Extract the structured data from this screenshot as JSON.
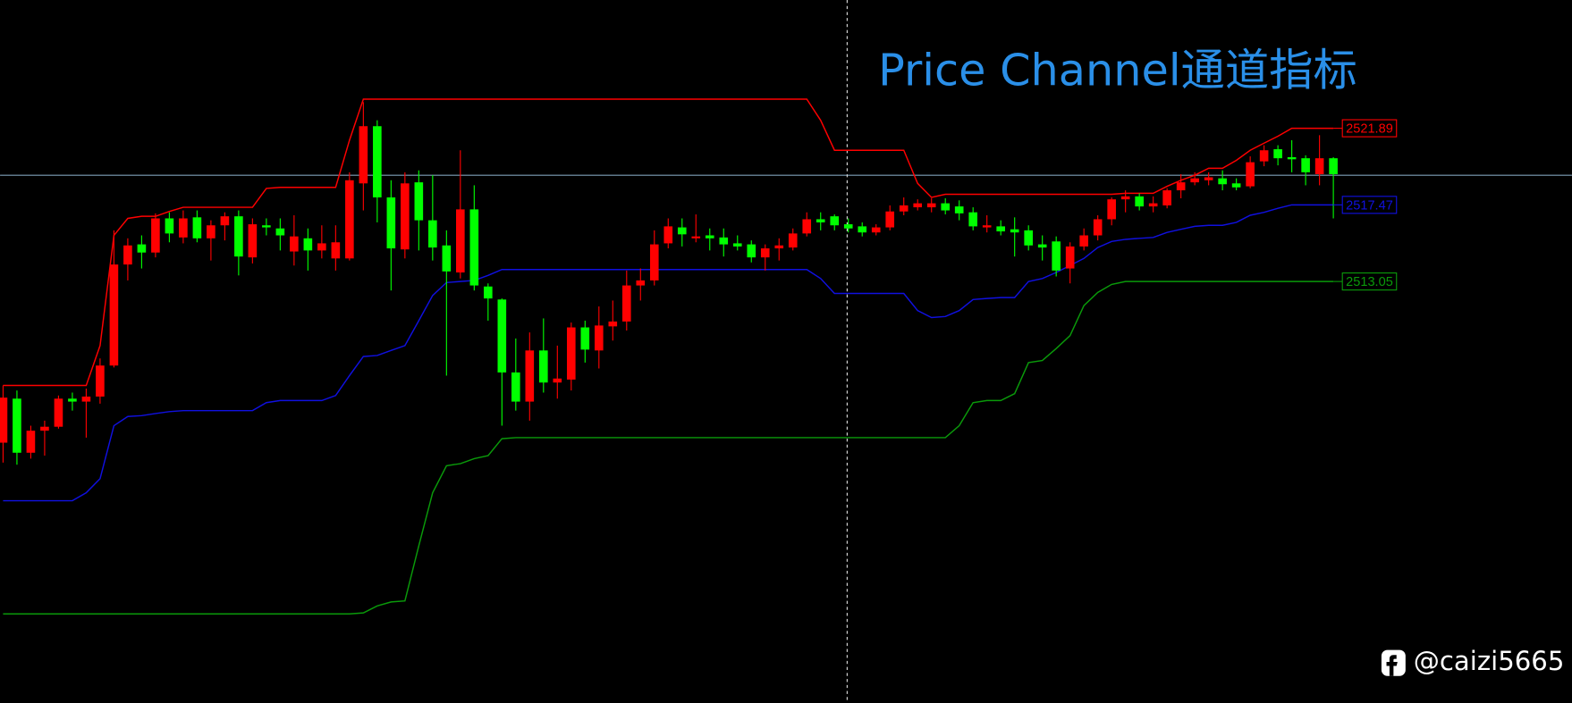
{
  "chart_data": {
    "type": "candlestick",
    "title": "Price Channel通道指标",
    "watermark": "@caizi5665",
    "ylim": [
      2488.73,
      2529.29
    ],
    "up_color": "#ff0000",
    "down_color": "#00ff00",
    "open": [
      2503.75,
      2506.29,
      2503.17,
      2504.44,
      2504.67,
      2506.29,
      2506.12,
      2506.41,
      2508.2,
      2514.03,
      2515.19,
      2514.72,
      2516.69,
      2515.59,
      2516.75,
      2515.54,
      2516.29,
      2516.81,
      2514.44,
      2516.29,
      2516.11,
      2514.78,
      2515.54,
      2514.84,
      2514.38,
      2514.38,
      2518.71,
      2522.01,
      2517.9,
      2514.9,
      2518.77,
      2516.58,
      2515.13,
      2513.57,
      2517.21,
      2512.76,
      2512.01,
      2507.8,
      2506.12,
      2509.07,
      2507.22,
      2507.39,
      2510.4,
      2509.07,
      2510.46,
      2510.74,
      2512.82,
      2513.11,
      2515.25,
      2516.17,
      2515.54,
      2515.71,
      2515.59,
      2515.25,
      2515.19,
      2514.44,
      2514.96,
      2515.01,
      2515.82,
      2516.64,
      2516.81,
      2516.35,
      2516.23,
      2515.88,
      2516.17,
      2517.09,
      2517.33,
      2517.33,
      2517.56,
      2517.38,
      2517.04,
      2516.17,
      2516.23,
      2516.06,
      2516.0,
      2515.19,
      2515.36,
      2513.8,
      2515.07,
      2515.71,
      2516.64,
      2517.79,
      2517.96,
      2517.38,
      2517.44,
      2518.31,
      2518.77,
      2518.89,
      2519.0,
      2518.71,
      2518.54,
      2519.98,
      2520.68,
      2520.22,
      2520.16,
      2519.24,
      2520.16
    ],
    "high": [
      2507.05,
      2506.76,
      2504.73,
      2505.02,
      2506.47,
      2506.64,
      2506.87,
      2508.61,
      2516.0,
      2515.54,
      2515.71,
      2516.98,
      2517.04,
      2517.15,
      2517.15,
      2516.58,
      2517.04,
      2517.15,
      2516.69,
      2516.69,
      2516.69,
      2516.87,
      2516.11,
      2516.29,
      2516.29,
      2519.35,
      2523.4,
      2522.35,
      2518.89,
      2519.35,
      2519.46,
      2519.18,
      2516.0,
      2520.62,
      2518.6,
      2512.94,
      2512.07,
      2509.76,
      2510.11,
      2510.92,
      2509.35,
      2510.68,
      2510.79,
      2511.61,
      2511.95,
      2513.68,
      2513.8,
      2516.0,
      2516.69,
      2516.69,
      2516.92,
      2516.11,
      2516.11,
      2515.71,
      2515.42,
      2515.19,
      2515.54,
      2516.11,
      2517.04,
      2517.04,
      2516.92,
      2516.69,
      2516.46,
      2516.35,
      2517.44,
      2517.9,
      2517.79,
      2517.85,
      2517.85,
      2517.73,
      2517.33,
      2516.87,
      2516.58,
      2516.75,
      2516.29,
      2515.71,
      2515.65,
      2515.31,
      2516.11,
      2516.87,
      2517.9,
      2518.31,
      2518.14,
      2517.96,
      2518.43,
      2519.24,
      2519.35,
      2519.35,
      2519.46,
      2519.0,
      2520.27,
      2520.91,
      2520.91,
      2521.2,
      2520.33,
      2521.49,
      2520.22
    ],
    "low": [
      2502.6,
      2502.48,
      2502.83,
      2503.0,
      2504.56,
      2505.6,
      2504.04,
      2506.0,
      2508.09,
      2513.11,
      2513.8,
      2514.44,
      2515.31,
      2515.25,
      2515.31,
      2514.26,
      2515.42,
      2513.4,
      2514.09,
      2515.71,
      2514.84,
      2513.97,
      2513.68,
      2514.38,
      2513.68,
      2514.26,
      2517.15,
      2516.46,
      2512.53,
      2514.38,
      2514.84,
      2514.26,
      2507.62,
      2513.22,
      2512.53,
      2510.79,
      2504.73,
      2505.6,
      2505.02,
      2506.64,
      2506.29,
      2506.76,
      2508.37,
      2508.03,
      2509.64,
      2510.22,
      2511.95,
      2512.82,
      2514.96,
      2515.07,
      2515.31,
      2514.84,
      2514.49,
      2514.84,
      2514.15,
      2513.68,
      2514.26,
      2514.84,
      2515.65,
      2516.0,
      2516.0,
      2515.88,
      2515.65,
      2515.71,
      2516.0,
      2516.87,
      2517.15,
      2517.04,
      2516.92,
      2516.58,
      2516.0,
      2515.88,
      2515.71,
      2514.49,
      2514.84,
      2514.26,
      2513.34,
      2512.94,
      2514.84,
      2515.42,
      2516.29,
      2517.04,
      2517.15,
      2517.04,
      2517.27,
      2517.85,
      2518.6,
      2518.6,
      2518.31,
      2518.31,
      2518.43,
      2519.7,
      2519.75,
      2519.35,
      2518.6,
      2518.6,
      2516.69
    ],
    "close": [
      2506.35,
      2503.17,
      2504.44,
      2504.67,
      2506.29,
      2506.12,
      2506.41,
      2508.2,
      2514.03,
      2515.13,
      2514.72,
      2516.69,
      2515.82,
      2516.69,
      2515.54,
      2516.29,
      2516.81,
      2514.49,
      2516.35,
      2516.17,
      2515.71,
      2515.65,
      2514.84,
      2515.25,
      2515.31,
      2518.89,
      2522.01,
      2517.9,
      2514.96,
      2518.71,
      2516.58,
      2515.01,
      2513.63,
      2517.21,
      2512.82,
      2512.07,
      2507.8,
      2506.12,
      2509.07,
      2507.22,
      2507.45,
      2510.4,
      2509.12,
      2510.51,
      2510.74,
      2512.82,
      2513.11,
      2515.19,
      2516.23,
      2515.77,
      2515.65,
      2515.54,
      2515.19,
      2515.07,
      2514.44,
      2514.96,
      2515.13,
      2515.82,
      2516.64,
      2516.46,
      2516.29,
      2516.11,
      2515.88,
      2516.17,
      2517.09,
      2517.44,
      2517.56,
      2517.56,
      2517.15,
      2516.98,
      2516.23,
      2516.29,
      2515.94,
      2515.88,
      2515.13,
      2515.01,
      2513.68,
      2515.07,
      2515.71,
      2516.64,
      2517.79,
      2517.96,
      2517.38,
      2517.56,
      2518.31,
      2518.77,
      2519.0,
      2519.06,
      2518.66,
      2518.48,
      2519.93,
      2520.62,
      2520.16,
      2520.1,
      2519.35,
      2520.16,
      2519.24
    ],
    "series": [
      {
        "color": "#ff0000",
        "values": [
          2507.05,
          2507.05,
          2507.05,
          2507.05,
          2507.05,
          2507.05,
          2507.05,
          2509.35,
          2515.71,
          2516.69,
          2516.81,
          2516.81,
          2517.09,
          2517.33,
          2517.33,
          2517.33,
          2517.33,
          2517.33,
          2517.33,
          2518.42,
          2518.48,
          2518.48,
          2518.48,
          2518.48,
          2518.48,
          2521.2,
          2523.57,
          2523.57,
          2523.57,
          2523.57,
          2523.57,
          2523.57,
          2523.57,
          2523.57,
          2523.57,
          2523.57,
          2523.57,
          2523.57,
          2523.57,
          2523.57,
          2523.57,
          2523.57,
          2523.57,
          2523.57,
          2523.57,
          2523.57,
          2523.57,
          2523.57,
          2523.57,
          2523.57,
          2523.57,
          2523.57,
          2523.57,
          2523.57,
          2523.57,
          2523.57,
          2523.57,
          2523.57,
          2523.57,
          2522.35,
          2520.62,
          2520.62,
          2520.62,
          2520.62,
          2520.62,
          2520.62,
          2518.71,
          2517.9,
          2518.08,
          2518.08,
          2518.08,
          2518.08,
          2518.08,
          2518.08,
          2518.08,
          2518.08,
          2518.08,
          2518.08,
          2518.08,
          2518.08,
          2518.08,
          2518.14,
          2518.14,
          2518.14,
          2518.54,
          2518.89,
          2519.18,
          2519.58,
          2519.58,
          2520.04,
          2520.62,
          2521.03,
          2521.43,
          2521.89,
          2521.89,
          2521.89,
          2521.89
        ]
      },
      {
        "color": "#1010e0",
        "values": [
          2500.4,
          2500.4,
          2500.4,
          2500.4,
          2500.4,
          2500.4,
          2500.86,
          2501.67,
          2504.73,
          2505.26,
          2505.31,
          2505.43,
          2505.54,
          2505.6,
          2505.6,
          2505.6,
          2505.6,
          2505.6,
          2505.6,
          2506.06,
          2506.18,
          2506.18,
          2506.18,
          2506.18,
          2506.47,
          2507.62,
          2508.72,
          2508.78,
          2509.07,
          2509.35,
          2510.79,
          2512.24,
          2512.99,
          2513.05,
          2513.11,
          2513.4,
          2513.74,
          2513.74,
          2513.74,
          2513.74,
          2513.74,
          2513.74,
          2513.74,
          2513.74,
          2513.74,
          2513.74,
          2513.74,
          2513.74,
          2513.74,
          2513.74,
          2513.74,
          2513.74,
          2513.74,
          2513.74,
          2513.74,
          2513.74,
          2513.74,
          2513.74,
          2513.74,
          2513.22,
          2512.36,
          2512.36,
          2512.36,
          2512.36,
          2512.36,
          2512.36,
          2511.37,
          2510.97,
          2511.03,
          2511.37,
          2512.01,
          2512.07,
          2512.12,
          2512.12,
          2513.05,
          2513.22,
          2513.57,
          2513.97,
          2514.38,
          2515.01,
          2515.36,
          2515.48,
          2515.54,
          2515.59,
          2515.88,
          2516.06,
          2516.23,
          2516.29,
          2516.29,
          2516.46,
          2516.87,
          2517.04,
          2517.27,
          2517.47,
          2517.47,
          2517.47,
          2517.47
        ]
      },
      {
        "color": "#0a9a0a",
        "values": [
          2493.87,
          2493.87,
          2493.87,
          2493.87,
          2493.87,
          2493.87,
          2493.87,
          2493.87,
          2493.87,
          2493.87,
          2493.87,
          2493.87,
          2493.87,
          2493.87,
          2493.87,
          2493.87,
          2493.87,
          2493.87,
          2493.87,
          2493.87,
          2493.87,
          2493.87,
          2493.87,
          2493.87,
          2493.87,
          2493.87,
          2493.93,
          2494.33,
          2494.56,
          2494.62,
          2497.8,
          2500.86,
          2502.42,
          2502.54,
          2502.83,
          2503.0,
          2503.98,
          2504.04,
          2504.04,
          2504.04,
          2504.04,
          2504.04,
          2504.04,
          2504.04,
          2504.04,
          2504.04,
          2504.04,
          2504.04,
          2504.04,
          2504.04,
          2504.04,
          2504.04,
          2504.04,
          2504.04,
          2504.04,
          2504.04,
          2504.04,
          2504.04,
          2504.04,
          2504.04,
          2504.04,
          2504.04,
          2504.04,
          2504.04,
          2504.04,
          2504.04,
          2504.04,
          2504.04,
          2504.04,
          2504.73,
          2506.06,
          2506.18,
          2506.18,
          2506.58,
          2508.37,
          2508.49,
          2509.18,
          2509.93,
          2511.66,
          2512.42,
          2512.88,
          2513.05,
          2513.05,
          2513.05,
          2513.05,
          2513.05,
          2513.05,
          2513.05,
          2513.05,
          2513.05,
          2513.05,
          2513.05,
          2513.05,
          2513.05,
          2513.05,
          2513.05,
          2513.05
        ]
      }
    ]
  }
}
